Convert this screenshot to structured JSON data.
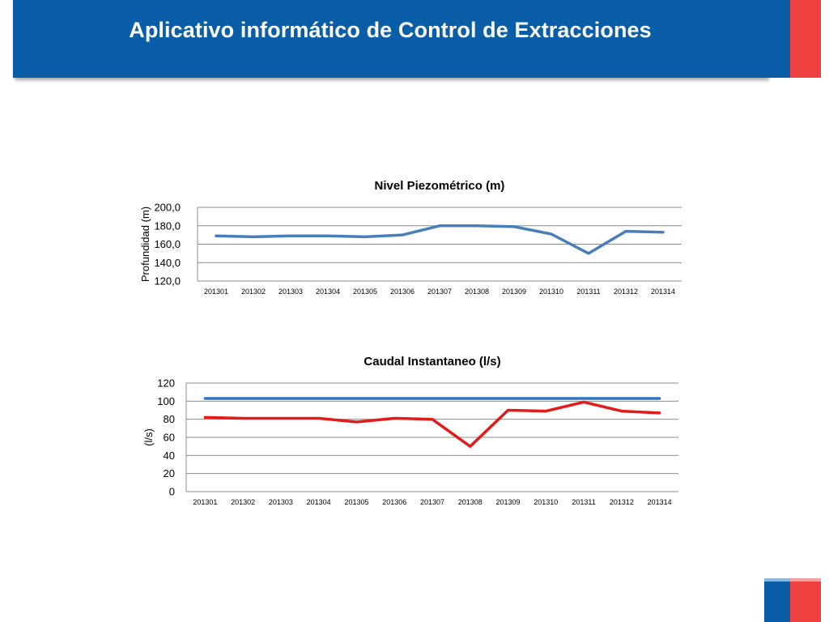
{
  "header": {
    "title": "Aplicativo informático de Control de Extracciones",
    "color": "#0a5ea8"
  },
  "brand": {
    "blue": "#0a5ea8",
    "red": "#ef4040"
  },
  "chart_data": [
    {
      "type": "line",
      "title": "Nivel Piezométrico (m)",
      "xlabel": "",
      "ylabel": "Profundidad (m)",
      "categories": [
        "201301",
        "201302",
        "201303",
        "201304",
        "201305",
        "201306",
        "201307",
        "201308",
        "201309",
        "201310",
        "201311",
        "201312",
        "201314"
      ],
      "ylim": [
        120,
        200
      ],
      "yticks": [
        "120,0",
        "140,0",
        "160,0",
        "180,0",
        "200,0"
      ],
      "grid": true,
      "series": [
        {
          "color": "#4a7ebb",
          "values": [
            169,
            168,
            169,
            169,
            168,
            170,
            180,
            180,
            179,
            171,
            150,
            174,
            173
          ]
        }
      ]
    },
    {
      "type": "line",
      "title": "Caudal Instantaneo (l/s)",
      "xlabel": "",
      "ylabel": "(l/s)",
      "categories": [
        "201301",
        "201302",
        "201303",
        "201304",
        "201305",
        "201306",
        "201307",
        "201308",
        "201309",
        "201310",
        "201311",
        "201312",
        "201314"
      ],
      "ylim": [
        0,
        120
      ],
      "yticks": [
        "0",
        "20",
        "40",
        "60",
        "80",
        "100",
        "120"
      ],
      "grid": true,
      "series": [
        {
          "color": "#2e75c0",
          "values": [
            103,
            103,
            103,
            103,
            103,
            103,
            103,
            103,
            103,
            103,
            103,
            103,
            103
          ]
        },
        {
          "color": "#e21b1b",
          "values": [
            82,
            81,
            81,
            81,
            77,
            81,
            80,
            50,
            90,
            89,
            99,
            89,
            87
          ]
        }
      ]
    }
  ]
}
